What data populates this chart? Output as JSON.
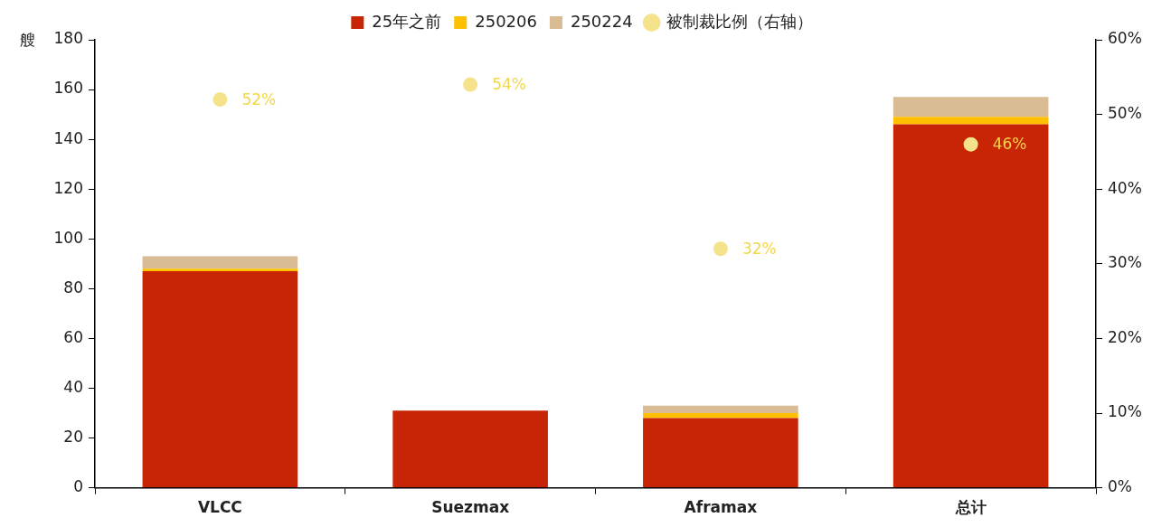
{
  "chart_data": {
    "type": "bar",
    "ylabel": "艘",
    "categories": [
      "VLCC",
      "Suezmax",
      "Aframax",
      "总计"
    ],
    "stacked": true,
    "legend": "top",
    "marker": "circle",
    "ylim": [
      0,
      180
    ],
    "yticks": [
      0,
      20,
      40,
      60,
      80,
      100,
      120,
      140,
      160,
      180
    ],
    "y2lim": [
      0,
      60
    ],
    "y2ticks": [
      {
        "value": 0,
        "label": "0%"
      },
      {
        "value": 10,
        "label": "10%"
      },
      {
        "value": 20,
        "label": "20%"
      },
      {
        "value": 30,
        "label": "30%"
      },
      {
        "value": 40,
        "label": "40%"
      },
      {
        "value": 50,
        "label": "50%"
      },
      {
        "value": 60,
        "label": "60%"
      }
    ],
    "series": [
      {
        "name": "25年之前",
        "color": "#c82506",
        "values": [
          87,
          31,
          28,
          146
        ]
      },
      {
        "name": "250206",
        "color": "#ffc000",
        "values": [
          1,
          0,
          2,
          3
        ]
      },
      {
        "name": "250224",
        "color": "#d9bb94",
        "values": [
          5,
          0,
          3,
          8
        ]
      },
      {
        "name": "被制裁比例（右轴）",
        "type": "scatter",
        "axis": "y2",
        "color": "#f5e38c",
        "x": [
          "VLCC",
          "Suezmax",
          "Aframax",
          "总计"
        ],
        "values": [
          52,
          54,
          32,
          46
        ],
        "value_labels": [
          "52%",
          "54%",
          "32%",
          "46%"
        ]
      }
    ]
  }
}
